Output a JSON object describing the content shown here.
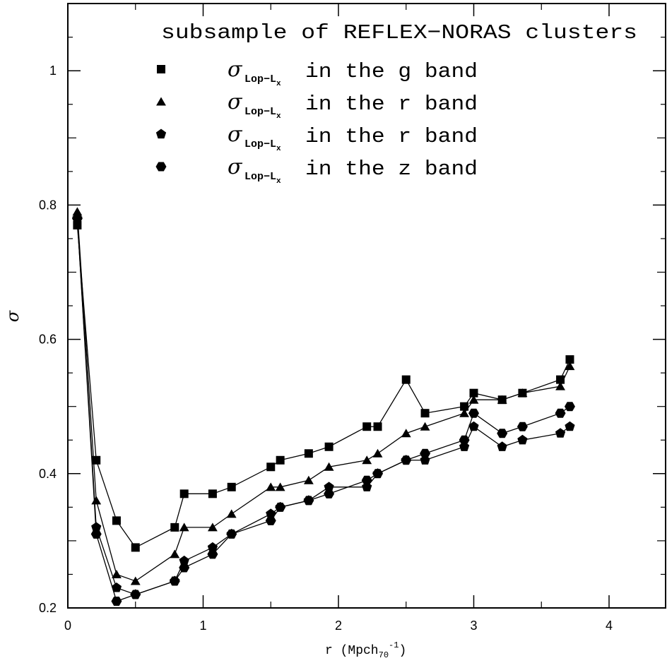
{
  "chart_data": {
    "type": "line",
    "title": "",
    "xlabel_base": "r (Mpch",
    "xlabel_sub": "70",
    "xlabel_sup": "-1",
    "xlabel_end": ")",
    "ylabel": "σ",
    "xlim": [
      0,
      4.5
    ],
    "ylim": [
      0.2,
      1.1
    ],
    "xticks": [
      0,
      1,
      2,
      3,
      4
    ],
    "xtick_labels": [
      "0",
      "1",
      "2",
      "3",
      "4"
    ],
    "yticks": [
      0.2,
      0.4,
      0.6,
      0.8,
      1.0
    ],
    "ytick_labels": [
      "0.2",
      "0.4",
      "0.6",
      "0.8",
      "1"
    ],
    "grid": false,
    "legend_placement": "top-right",
    "legend_heading": "subsample of REFLEX−NORAS clusters",
    "series": [
      {
        "name_symbol": "σ",
        "name_subscript_base": "Lop−L",
        "name_subscript_sub": "x",
        "name_text": "in the g band",
        "marker": "square",
        "x": [
          0.07,
          0.21,
          0.36,
          0.5,
          0.79,
          0.86,
          1.07,
          1.21,
          1.5,
          1.57,
          1.78,
          1.93,
          2.21,
          2.29,
          2.5,
          2.64,
          2.93,
          3.0,
          3.21,
          3.36,
          3.64,
          3.71
        ],
        "y": [
          0.77,
          0.42,
          0.33,
          0.29,
          0.32,
          0.37,
          0.37,
          0.38,
          0.41,
          0.42,
          0.43,
          0.44,
          0.47,
          0.47,
          0.54,
          0.49,
          0.5,
          0.52,
          0.51,
          0.52,
          0.54,
          0.57
        ]
      },
      {
        "name_symbol": "σ",
        "name_subscript_base": "Lop−L",
        "name_subscript_sub": "x",
        "name_text": "in the r band",
        "marker": "triangle",
        "x": [
          0.07,
          0.21,
          0.36,
          0.5,
          0.79,
          0.86,
          1.07,
          1.21,
          1.5,
          1.57,
          1.78,
          1.93,
          2.21,
          2.29,
          2.5,
          2.64,
          2.93,
          3.0,
          3.21,
          3.36,
          3.64,
          3.71
        ],
        "y": [
          0.79,
          0.36,
          0.25,
          0.24,
          0.28,
          0.32,
          0.32,
          0.34,
          0.38,
          0.38,
          0.39,
          0.41,
          0.42,
          0.43,
          0.46,
          0.47,
          0.49,
          0.51,
          0.51,
          0.52,
          0.53,
          0.56
        ]
      },
      {
        "name_symbol": "σ",
        "name_subscript_base": "Lop−L",
        "name_subscript_sub": "x",
        "name_text": "in the r band",
        "marker": "pentagon",
        "x": [
          0.07,
          0.21,
          0.36,
          0.5,
          0.79,
          0.86,
          1.07,
          1.21,
          1.5,
          1.57,
          1.78,
          1.93,
          2.21,
          2.29,
          2.5,
          2.64,
          2.93,
          3.0,
          3.21,
          3.36,
          3.64,
          3.71
        ],
        "y": [
          0.78,
          0.32,
          0.23,
          0.22,
          0.24,
          0.27,
          0.29,
          0.31,
          0.34,
          0.35,
          0.36,
          0.38,
          0.38,
          0.4,
          0.42,
          0.42,
          0.44,
          0.47,
          0.44,
          0.45,
          0.46,
          0.47
        ]
      },
      {
        "name_symbol": "σ",
        "name_subscript_base": "Lop−L",
        "name_subscript_sub": "x",
        "name_text": "in the z band",
        "marker": "hexagon",
        "x": [
          0.07,
          0.21,
          0.36,
          0.5,
          0.79,
          0.86,
          1.07,
          1.21,
          1.5,
          1.57,
          1.78,
          1.93,
          2.21,
          2.29,
          2.5,
          2.64,
          2.93,
          3.0,
          3.21,
          3.36,
          3.64,
          3.71
        ],
        "y": [
          0.78,
          0.31,
          0.21,
          0.22,
          0.24,
          0.26,
          0.28,
          0.31,
          0.33,
          0.35,
          0.36,
          0.37,
          0.39,
          0.4,
          0.42,
          0.43,
          0.45,
          0.49,
          0.46,
          0.47,
          0.49,
          0.5
        ]
      }
    ]
  }
}
